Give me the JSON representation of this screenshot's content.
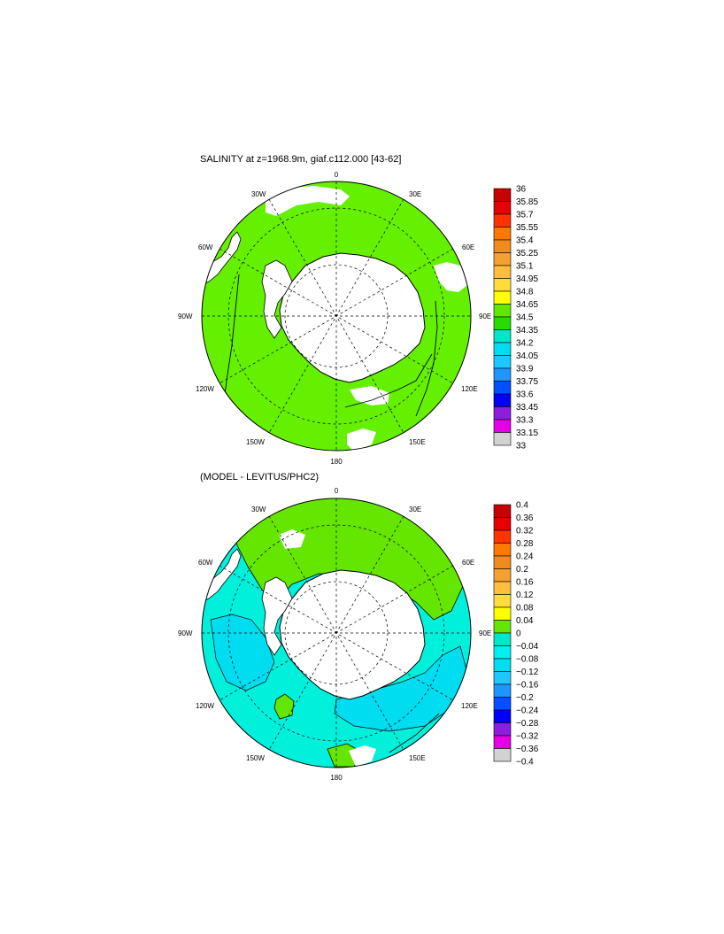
{
  "panels": [
    {
      "title": "SALINITY at z=1968.9m, giaf.c112.000 [43-62]",
      "compass": {
        "top": "0",
        "bottom": "180",
        "left": "90W",
        "right": "90E",
        "tl_upper": "30W",
        "tl_lower": "60W",
        "tr_upper": "30E",
        "tr_lower": "60E",
        "bl_upper": "120W",
        "bl_lower": "150W",
        "br_upper": "120E",
        "br_lower": "150E"
      },
      "colorbar": {
        "labels": [
          "36",
          "35.85",
          "35.7",
          "35.55",
          "35.4",
          "35.25",
          "35.1",
          "34.95",
          "34.8",
          "34.65",
          "34.5",
          "34.35",
          "34.2",
          "34.05",
          "33.9",
          "33.75",
          "33.6",
          "33.45",
          "33.3",
          "33.15",
          "33"
        ],
        "colors": [
          "#c80000",
          "#e60000",
          "#ff3200",
          "#ff7800",
          "#f08c1e",
          "#f5a032",
          "#ffbe3c",
          "#ffdc3c",
          "#ffff00",
          "#64e600",
          "#28dc00",
          "#00e6c8",
          "#00dcf0",
          "#1ec8ff",
          "#1e96ff",
          "#0050ff",
          "#0000ff",
          "#8c1edc",
          "#e600e6",
          "#d2d2d2",
          "#787878"
        ]
      },
      "ocean_color": "#64f000"
    },
    {
      "title": "(MODEL - LEVITUS/PHC2)",
      "compass": {
        "top": "0",
        "bottom": "180",
        "left": "90W",
        "right": "90E",
        "tl_upper": "30W",
        "tl_lower": "60W",
        "tr_upper": "30E",
        "tr_lower": "60E",
        "bl_upper": "120W",
        "bl_lower": "150W",
        "br_upper": "120E",
        "br_lower": "150E"
      },
      "colorbar": {
        "labels": [
          "0.4",
          "0.36",
          "0.32",
          "0.28",
          "0.24",
          "0.2",
          "0.16",
          "0.12",
          "0.08",
          "0.04",
          "0",
          "−0.04",
          "−0.08",
          "−0.12",
          "−0.16",
          "−0.2",
          "−0.24",
          "−0.28",
          "−0.32",
          "−0.36",
          "−0.4"
        ],
        "colors": [
          "#c80000",
          "#e60000",
          "#ff3200",
          "#ff7800",
          "#f08c1e",
          "#f5a032",
          "#ffbe3c",
          "#ffdc3c",
          "#ffff00",
          "#64e600",
          "#00e6c8",
          "#00f0f0",
          "#00dcf0",
          "#1ec8ff",
          "#1e96ff",
          "#0050ff",
          "#0000ff",
          "#8c1edc",
          "#e600e6",
          "#d2d2d2",
          "#787878"
        ]
      },
      "ocean_color": "#00f0dc",
      "positive_color": "#64e600"
    }
  ]
}
